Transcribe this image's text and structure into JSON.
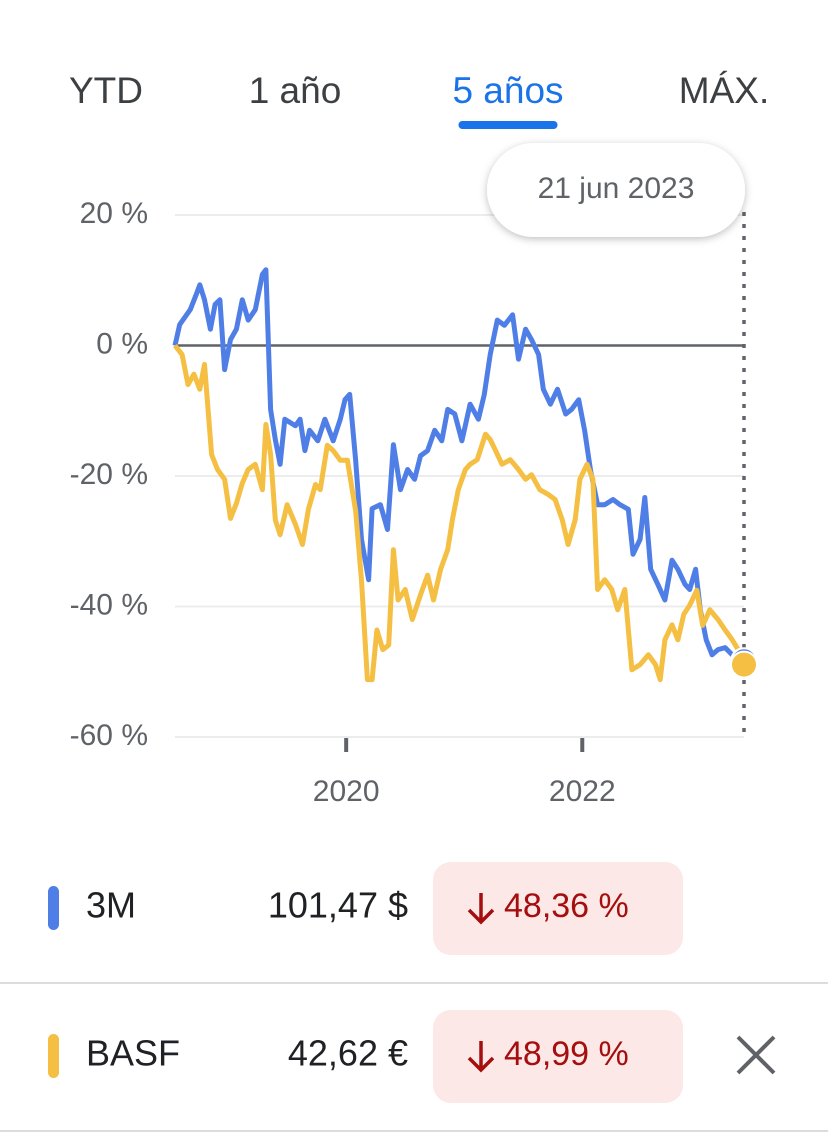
{
  "tabs": [
    {
      "label": "YTD",
      "selected": false
    },
    {
      "label": "1 año",
      "selected": false
    },
    {
      "label": "5 años",
      "selected": true
    },
    {
      "label": "MÁX.",
      "selected": false
    }
  ],
  "chart_data": {
    "type": "line",
    "annotation": "21 jun 2023",
    "xlim": [
      2018.55,
      2023.37
    ],
    "xticks": [
      2020,
      2022
    ],
    "ylim": [
      -60,
      20
    ],
    "yticks": [
      {
        "value": 20,
        "label": "20 %"
      },
      {
        "value": 0,
        "label": "0 %"
      },
      {
        "value": -20,
        "label": "-20 %"
      },
      {
        "value": -40,
        "label": "-40 %"
      },
      {
        "value": -60,
        "label": "-60 %"
      }
    ],
    "grid": true,
    "series": [
      {
        "name": "3M",
        "color": "#4f7fe6",
        "x": [
          2018.55,
          2018.59,
          2018.68,
          2018.73,
          2018.76,
          2018.8,
          2018.85,
          2018.89,
          2018.93,
          2018.97,
          2019.02,
          2019.07,
          2019.12,
          2019.17,
          2019.23,
          2019.29,
          2019.32,
          2019.36,
          2019.4,
          2019.44,
          2019.48,
          2019.57,
          2019.61,
          2019.65,
          2019.69,
          2019.76,
          2019.82,
          2019.89,
          2019.95,
          2019.99,
          2020.03,
          2020.08,
          2020.13,
          2020.19,
          2020.22,
          2020.29,
          2020.35,
          2020.4,
          2020.46,
          2020.52,
          2020.58,
          2020.63,
          2020.69,
          2020.75,
          2020.81,
          2020.86,
          2020.92,
          2020.98,
          2021.05,
          2021.12,
          2021.17,
          2021.22,
          2021.28,
          2021.34,
          2021.41,
          2021.46,
          2021.52,
          2021.57,
          2021.63,
          2021.67,
          2021.73,
          2021.79,
          2021.86,
          2021.91,
          2021.97,
          2022.02,
          2022.07,
          2022.13,
          2022.19,
          2022.26,
          2022.32,
          2022.39,
          2022.43,
          2022.49,
          2022.53,
          2022.58,
          2022.64,
          2022.7,
          2022.76,
          2022.81,
          2022.87,
          2022.91,
          2022.96,
          2023.0,
          2023.05,
          2023.1,
          2023.15,
          2023.21,
          2023.27,
          2023.32,
          2023.37
        ],
        "values": [
          0,
          3.2,
          5.5,
          7.8,
          9.3,
          7.0,
          2.5,
          6.3,
          7.0,
          -3.7,
          0.9,
          2.5,
          7.0,
          3.9,
          5.5,
          10.9,
          11.6,
          -9.8,
          -14.4,
          -18.2,
          -11.3,
          -12.3,
          -11.3,
          -16.1,
          -13.0,
          -14.6,
          -11.3,
          -14.6,
          -11.3,
          -8.3,
          -7.5,
          -17.5,
          -29.7,
          -35.9,
          -25.0,
          -24.4,
          -28.2,
          -15.2,
          -22.1,
          -19.0,
          -20.5,
          -16.9,
          -16.1,
          -13.0,
          -14.6,
          -9.8,
          -10.5,
          -14.6,
          -9.0,
          -11.3,
          -7.5,
          -1.4,
          3.9,
          3.1,
          4.7,
          -2.1,
          2.5,
          0.9,
          -1.4,
          -6.7,
          -9.0,
          -6.7,
          -10.5,
          -9.8,
          -8.3,
          -13.0,
          -19.1,
          -24.4,
          -24.4,
          -23.6,
          -24.4,
          -25.1,
          -32.0,
          -29.7,
          -23.3,
          -34.3,
          -36.6,
          -39.0,
          -32.9,
          -34.3,
          -36.6,
          -37.4,
          -34.3,
          -40.5,
          -45.1,
          -47.4,
          -46.6,
          -46.3,
          -47.4,
          -48.2,
          -48.4
        ]
      },
      {
        "name": "BASF",
        "color": "#f4bf42",
        "x": [
          2018.55,
          2018.61,
          2018.66,
          2018.71,
          2018.76,
          2018.8,
          2018.86,
          2018.91,
          2018.97,
          2019.02,
          2019.07,
          2019.12,
          2019.17,
          2019.23,
          2019.29,
          2019.32,
          2019.36,
          2019.4,
          2019.44,
          2019.5,
          2019.57,
          2019.63,
          2019.68,
          2019.74,
          2019.78,
          2019.84,
          2019.89,
          2019.95,
          2020.01,
          2020.08,
          2020.13,
          2020.18,
          2020.22,
          2020.26,
          2020.31,
          2020.36,
          2020.4,
          2020.44,
          2020.5,
          2020.56,
          2020.63,
          2020.69,
          2020.74,
          2020.8,
          2020.86,
          2020.9,
          2020.95,
          2021.01,
          2021.05,
          2021.11,
          2021.18,
          2021.22,
          2021.26,
          2021.32,
          2021.39,
          2021.46,
          2021.52,
          2021.57,
          2021.64,
          2021.71,
          2021.77,
          2021.83,
          2021.88,
          2021.94,
          2021.98,
          2022.04,
          2022.09,
          2022.13,
          2022.19,
          2022.25,
          2022.3,
          2022.36,
          2022.42,
          2022.49,
          2022.56,
          2022.62,
          2022.66,
          2022.7,
          2022.76,
          2022.81,
          2022.86,
          2022.91,
          2022.97,
          2023.02,
          2023.08,
          2023.15,
          2023.21,
          2023.27,
          2023.32,
          2023.37
        ],
        "values": [
          0,
          -1.4,
          -6.0,
          -4.4,
          -6.7,
          -2.9,
          -16.7,
          -19.0,
          -20.5,
          -26.5,
          -24.2,
          -21.1,
          -19.0,
          -18.2,
          -22.1,
          -12.1,
          -16.7,
          -26.7,
          -29.0,
          -24.4,
          -27.4,
          -30.5,
          -25.1,
          -21.3,
          -22.1,
          -15.3,
          -16.1,
          -17.6,
          -17.6,
          -25.3,
          -36.0,
          -51.2,
          -51.2,
          -43.6,
          -46.6,
          -45.9,
          -31.3,
          -39.0,
          -37.4,
          -42.0,
          -38.2,
          -35.2,
          -39.0,
          -34.3,
          -31.3,
          -26.7,
          -22.1,
          -19.0,
          -18.2,
          -17.5,
          -13.6,
          -14.4,
          -15.9,
          -18.2,
          -17.5,
          -19.0,
          -20.5,
          -19.8,
          -22.1,
          -22.8,
          -23.6,
          -26.7,
          -30.5,
          -26.7,
          -20.5,
          -18.2,
          -20.5,
          -37.4,
          -35.9,
          -37.4,
          -40.5,
          -37.4,
          -49.7,
          -48.9,
          -47.4,
          -48.9,
          -51.2,
          -45.1,
          -42.8,
          -45.1,
          -41.2,
          -39.8,
          -37.5,
          -42.9,
          -40.5,
          -42.0,
          -43.6,
          -45.1,
          -46.6,
          -48.9
        ]
      }
    ]
  },
  "legend": [
    {
      "name": "3M",
      "price": "101,47 $",
      "change": "48,36 %"
    },
    {
      "name": "BASF",
      "price": "42,62 €",
      "change": "48,99 %"
    }
  ]
}
